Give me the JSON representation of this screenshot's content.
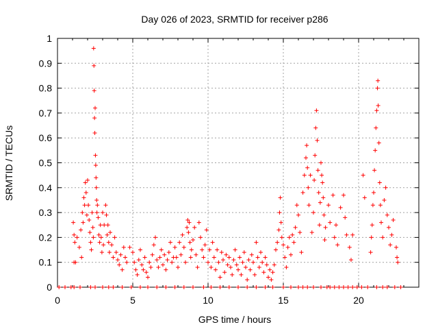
{
  "chart_data": {
    "type": "scatter",
    "title": "Day 026 of 2023, SRMTID for receiver p286",
    "xlabel": "GPS time / hours",
    "ylabel": "SRMTID / TECUs",
    "xlim": [
      0,
      24
    ],
    "ylim": [
      0,
      1
    ],
    "xticks": [
      0,
      5,
      10,
      15,
      20
    ],
    "xtick_labels": [
      "0",
      "5",
      "10",
      "15",
      "20"
    ],
    "yticks": [
      0,
      0.1,
      0.2,
      0.3,
      0.4,
      0.5,
      0.6,
      0.7,
      0.8,
      0.9,
      1
    ],
    "ytick_labels": [
      "0",
      "0.1",
      "0.2",
      "0.3",
      "0.4",
      "0.5",
      "0.6",
      "0.7",
      "0.8",
      "0.9",
      "1"
    ],
    "grid": true,
    "marker": "+",
    "series": [
      {
        "name": "SRMTID",
        "color": "#ff0000",
        "points": [
          [
            0.1,
            0
          ],
          [
            0.5,
            0
          ],
          [
            0.9,
            0
          ],
          [
            1.1,
            0
          ],
          [
            1.5,
            0
          ],
          [
            2.2,
            0
          ],
          [
            2.5,
            0
          ],
          [
            3.0,
            0
          ],
          [
            3.4,
            0
          ],
          [
            3.7,
            0
          ],
          [
            4.3,
            0
          ],
          [
            4.9,
            0
          ],
          [
            5.5,
            0
          ],
          [
            6.0,
            0
          ],
          [
            6.6,
            0
          ],
          [
            7.2,
            0
          ],
          [
            7.8,
            0
          ],
          [
            8.4,
            0
          ],
          [
            9.0,
            0
          ],
          [
            9.7,
            0
          ],
          [
            10.2,
            0
          ],
          [
            10.8,
            0
          ],
          [
            11.4,
            0
          ],
          [
            12.0,
            0
          ],
          [
            12.6,
            0
          ],
          [
            13.2,
            0
          ],
          [
            13.8,
            0
          ],
          [
            14.3,
            0
          ],
          [
            15.0,
            0
          ],
          [
            15.5,
            0
          ],
          [
            16.0,
            0
          ],
          [
            16.3,
            0
          ],
          [
            16.6,
            0
          ],
          [
            17.0,
            0
          ],
          [
            17.5,
            0
          ],
          [
            17.9,
            0
          ],
          [
            18.1,
            0
          ],
          [
            18.4,
            0
          ],
          [
            18.7,
            0
          ],
          [
            19.0,
            0
          ],
          [
            19.3,
            0
          ],
          [
            19.6,
            0
          ],
          [
            19.9,
            0
          ],
          [
            20.2,
            0
          ],
          [
            20.6,
            0
          ],
          [
            21.2,
            0
          ],
          [
            21.6,
            0
          ],
          [
            21.9,
            0
          ],
          [
            22.4,
            0
          ],
          [
            22.8,
            0
          ],
          [
            1.05,
            0.26
          ],
          [
            1.1,
            0.21
          ],
          [
            1.15,
            0.18
          ],
          [
            1.1,
            0.1
          ],
          [
            1.2,
            0.1
          ],
          [
            1.3,
            0.2
          ],
          [
            1.45,
            0.16
          ],
          [
            1.55,
            0.23
          ],
          [
            1.6,
            0.12
          ],
          [
            1.65,
            0.3
          ],
          [
            1.7,
            0.26
          ],
          [
            1.75,
            0.36
          ],
          [
            1.8,
            0.33
          ],
          [
            1.85,
            0.42
          ],
          [
            1.9,
            0.38
          ],
          [
            1.95,
            0.29
          ],
          [
            2.0,
            0.43
          ],
          [
            2.05,
            0.33
          ],
          [
            2.1,
            0.27
          ],
          [
            2.15,
            0.22
          ],
          [
            2.2,
            0.18
          ],
          [
            2.25,
            0.15
          ],
          [
            2.3,
            0.3
          ],
          [
            2.35,
            0.24
          ],
          [
            2.38,
            0.2
          ],
          [
            2.4,
            0.96
          ],
          [
            2.42,
            0.89
          ],
          [
            2.44,
            0.79
          ],
          [
            2.46,
            0.68
          ],
          [
            2.48,
            0.62
          ],
          [
            2.5,
            0.72
          ],
          [
            2.52,
            0.53
          ],
          [
            2.54,
            0.49
          ],
          [
            2.56,
            0.44
          ],
          [
            2.58,
            0.4
          ],
          [
            2.6,
            0.35
          ],
          [
            2.62,
            0.3
          ],
          [
            2.65,
            0.33
          ],
          [
            2.7,
            0.28
          ],
          [
            2.75,
            0.21
          ],
          [
            2.8,
            0.18
          ],
          [
            2.85,
            0.25
          ],
          [
            2.9,
            0.2
          ],
          [
            2.95,
            0.14
          ],
          [
            3.0,
            0.3
          ],
          [
            3.05,
            0.17
          ],
          [
            3.1,
            0.25
          ],
          [
            3.2,
            0.33
          ],
          [
            3.25,
            0.29
          ],
          [
            3.3,
            0.21
          ],
          [
            3.35,
            0.25
          ],
          [
            3.4,
            0.18
          ],
          [
            3.45,
            0.14
          ],
          [
            3.5,
            0.22
          ],
          [
            3.6,
            0.17
          ],
          [
            3.7,
            0.12
          ],
          [
            3.8,
            0.2
          ],
          [
            3.9,
            0.14
          ],
          [
            4.0,
            0.11
          ],
          [
            4.1,
            0.09
          ],
          [
            4.2,
            0.13
          ],
          [
            4.3,
            0.07
          ],
          [
            4.4,
            0.16
          ],
          [
            4.5,
            0.12
          ],
          [
            4.6,
            0.1
          ],
          [
            4.8,
            0.16
          ],
          [
            5.0,
            0.14
          ],
          [
            5.1,
            0.1
          ],
          [
            5.2,
            0.07
          ],
          [
            5.3,
            0.05
          ],
          [
            5.4,
            0.11
          ],
          [
            5.5,
            0.15
          ],
          [
            5.6,
            0.09
          ],
          [
            5.7,
            0.07
          ],
          [
            5.8,
            0.12
          ],
          [
            5.9,
            0.06
          ],
          [
            6.0,
            0.04
          ],
          [
            6.1,
            0.1
          ],
          [
            6.2,
            0.08
          ],
          [
            6.3,
            0.13
          ],
          [
            6.4,
            0.17
          ],
          [
            6.5,
            0.2
          ],
          [
            6.6,
            0.11
          ],
          [
            6.7,
            0.08
          ],
          [
            6.8,
            0.12
          ],
          [
            6.9,
            0.15
          ],
          [
            7.0,
            0.09
          ],
          [
            7.1,
            0.13
          ],
          [
            7.2,
            0.07
          ],
          [
            7.3,
            0.11
          ],
          [
            7.4,
            0.14
          ],
          [
            7.5,
            0.18
          ],
          [
            7.6,
            0.1
          ],
          [
            7.7,
            0.12
          ],
          [
            7.8,
            0.16
          ],
          [
            7.9,
            0.12
          ],
          [
            8.0,
            0.08
          ],
          [
            8.1,
            0.18
          ],
          [
            8.2,
            0.13
          ],
          [
            8.3,
            0.21
          ],
          [
            8.4,
            0.16
          ],
          [
            8.5,
            0.1
          ],
          [
            8.6,
            0.24
          ],
          [
            8.65,
            0.27
          ],
          [
            8.7,
            0.22
          ],
          [
            8.75,
            0.26
          ],
          [
            8.8,
            0.18
          ],
          [
            8.85,
            0.12
          ],
          [
            8.9,
            0.15
          ],
          [
            9.0,
            0.19
          ],
          [
            9.1,
            0.24
          ],
          [
            9.2,
            0.13
          ],
          [
            9.3,
            0.08
          ],
          [
            9.4,
            0.26
          ],
          [
            9.5,
            0.2
          ],
          [
            9.6,
            0.15
          ],
          [
            9.7,
            0.12
          ],
          [
            9.8,
            0.17
          ],
          [
            9.9,
            0.23
          ],
          [
            10.0,
            0.1
          ],
          [
            10.1,
            0.15
          ],
          [
            10.2,
            0.08
          ],
          [
            10.3,
            0.18
          ],
          [
            10.4,
            0.12
          ],
          [
            10.5,
            0.07
          ],
          [
            10.6,
            0.15
          ],
          [
            10.7,
            0.1
          ],
          [
            10.8,
            0.04
          ],
          [
            10.9,
            0.14
          ],
          [
            11.0,
            0.11
          ],
          [
            11.1,
            0.06
          ],
          [
            11.2,
            0.13
          ],
          [
            11.3,
            0.09
          ],
          [
            11.4,
            0.12
          ],
          [
            11.5,
            0.08
          ],
          [
            11.6,
            0.05
          ],
          [
            11.7,
            0.11
          ],
          [
            11.8,
            0.15
          ],
          [
            11.9,
            0.09
          ],
          [
            12.0,
            0.07
          ],
          [
            12.1,
            0.12
          ],
          [
            12.2,
            0.05
          ],
          [
            12.3,
            0.1
          ],
          [
            12.4,
            0.14
          ],
          [
            12.5,
            0.08
          ],
          [
            12.6,
            0.03
          ],
          [
            12.7,
            0.11
          ],
          [
            12.8,
            0.07
          ],
          [
            12.9,
            0.13
          ],
          [
            13.0,
            0.1
          ],
          [
            13.1,
            0.05
          ],
          [
            13.2,
            0.18
          ],
          [
            13.3,
            0.12
          ],
          [
            13.4,
            0.08
          ],
          [
            13.5,
            0.14
          ],
          [
            13.6,
            0.1
          ],
          [
            13.7,
            0.06
          ],
          [
            13.8,
            0.12
          ],
          [
            13.9,
            0.09
          ],
          [
            14.0,
            0.04
          ],
          [
            14.1,
            0.07
          ],
          [
            14.2,
            0.03
          ],
          [
            14.3,
            0.06
          ],
          [
            14.4,
            0.09
          ],
          [
            14.5,
            0.15
          ],
          [
            14.6,
            0.18
          ],
          [
            14.7,
            0.23
          ],
          [
            14.75,
            0.3
          ],
          [
            14.8,
            0.36
          ],
          [
            14.85,
            0.26
          ],
          [
            14.9,
            0.2
          ],
          [
            15.0,
            0.17
          ],
          [
            15.1,
            0.12
          ],
          [
            15.2,
            0.08
          ],
          [
            15.3,
            0.16
          ],
          [
            15.4,
            0.2
          ],
          [
            15.5,
            0.13
          ],
          [
            15.6,
            0.21
          ],
          [
            15.7,
            0.18
          ],
          [
            15.8,
            0.24
          ],
          [
            15.9,
            0.33
          ],
          [
            16.0,
            0.29
          ],
          [
            16.1,
            0.22
          ],
          [
            16.2,
            0.14
          ],
          [
            16.3,
            0.38
          ],
          [
            16.4,
            0.45
          ],
          [
            16.5,
            0.52
          ],
          [
            16.55,
            0.57
          ],
          [
            16.6,
            0.48
          ],
          [
            16.65,
            0.4
          ],
          [
            16.7,
            0.33
          ],
          [
            16.8,
            0.45
          ],
          [
            16.9,
            0.22
          ],
          [
            17.0,
            0.3
          ],
          [
            17.05,
            0.43
          ],
          [
            17.1,
            0.53
          ],
          [
            17.15,
            0.64
          ],
          [
            17.2,
            0.71
          ],
          [
            17.25,
            0.59
          ],
          [
            17.3,
            0.47
          ],
          [
            17.35,
            0.38
          ],
          [
            17.4,
            0.25
          ],
          [
            17.45,
            0.34
          ],
          [
            17.5,
            0.5
          ],
          [
            17.55,
            0.45
          ],
          [
            17.6,
            0.42
          ],
          [
            17.65,
            0.36
          ],
          [
            17.7,
            0.29
          ],
          [
            17.75,
            0.19
          ],
          [
            17.8,
            0.24
          ],
          [
            18.0,
            0.33
          ],
          [
            18.1,
            0.26
          ],
          [
            18.3,
            0.37
          ],
          [
            18.4,
            0.2
          ],
          [
            18.5,
            0.25
          ],
          [
            18.6,
            0.17
          ],
          [
            18.8,
            0.32
          ],
          [
            19.0,
            0.37
          ],
          [
            19.1,
            0.28
          ],
          [
            19.2,
            0.21
          ],
          [
            19.4,
            0.16
          ],
          [
            19.5,
            0.11
          ],
          [
            19.6,
            0.21
          ],
          [
            20.3,
            0.45
          ],
          [
            20.4,
            0.36
          ],
          [
            20.8,
            0.14
          ],
          [
            20.85,
            0.2
          ],
          [
            20.9,
            0.25
          ],
          [
            20.95,
            0.33
          ],
          [
            21.0,
            0.38
          ],
          [
            21.05,
            0.47
          ],
          [
            21.1,
            0.55
          ],
          [
            21.15,
            0.64
          ],
          [
            21.2,
            0.71
          ],
          [
            21.25,
            0.8
          ],
          [
            21.28,
            0.83
          ],
          [
            21.3,
            0.73
          ],
          [
            21.35,
            0.58
          ],
          [
            21.4,
            0.42
          ],
          [
            21.45,
            0.33
          ],
          [
            21.5,
            0.26
          ],
          [
            21.6,
            0.2
          ],
          [
            21.7,
            0.35
          ],
          [
            21.8,
            0.4
          ],
          [
            21.9,
            0.29
          ],
          [
            22.0,
            0.24
          ],
          [
            22.1,
            0.17
          ],
          [
            22.2,
            0.21
          ],
          [
            22.3,
            0.27
          ],
          [
            22.5,
            0.16
          ],
          [
            22.55,
            0.12
          ],
          [
            22.6,
            0.1
          ]
        ]
      }
    ]
  }
}
